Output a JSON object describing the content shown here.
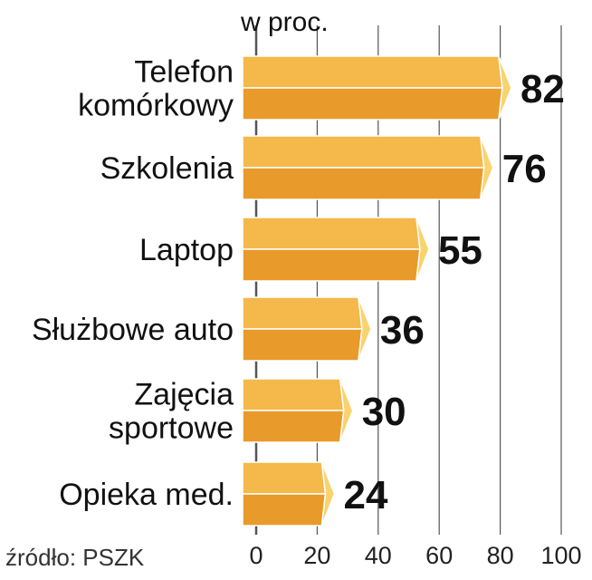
{
  "chart_data": {
    "type": "bar",
    "orientation": "horizontal",
    "unit_label": "w proc.",
    "categories": [
      [
        "Telefon",
        "komórkowy"
      ],
      [
        "Szkolenia"
      ],
      [
        "Laptop"
      ],
      [
        "Służbowe auto"
      ],
      [
        "Zajęcia",
        "sportowe"
      ],
      [
        "Opieka med."
      ]
    ],
    "values": [
      82,
      76,
      55,
      36,
      30,
      24
    ],
    "value_labels": [
      "82",
      "76",
      "55",
      "36",
      "30",
      "24"
    ],
    "xlim": [
      0,
      100
    ],
    "ticks": [
      0,
      20,
      40,
      60,
      80,
      100
    ],
    "tick_labels": [
      "0",
      "20",
      "40",
      "60",
      "80",
      "100"
    ],
    "grid": true,
    "source": "źródło: PSZK",
    "colors": {
      "bar_top": "#F5B84A",
      "bar_bottom": "#E89A2A",
      "bar_tip": "#F8D36E",
      "bar_edge": "#ffffff",
      "grid": "#555555",
      "text": "#111111"
    }
  }
}
